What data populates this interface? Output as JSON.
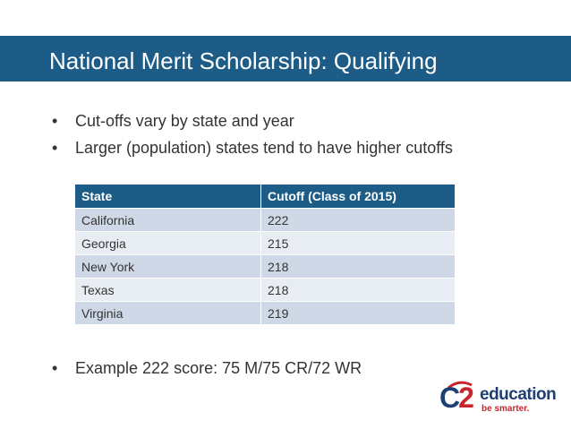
{
  "title": "National Merit Scholarship: Qualifying",
  "bullets": [
    "Cut-offs vary by state and year",
    "Larger (population) states tend to have higher cutoffs"
  ],
  "table": {
    "headers": [
      "State",
      "Cutoff (Class of 2015)"
    ],
    "rows": [
      [
        "California",
        "222"
      ],
      [
        "Georgia",
        "215"
      ],
      [
        "New York",
        "218"
      ],
      [
        "Texas",
        "218"
      ],
      [
        "Virginia",
        "219"
      ]
    ]
  },
  "bottom_bullet": "Example 222 score: 75 M/75 CR/72 WR",
  "logo": {
    "mark_c": "C",
    "mark_2": "2",
    "word": "education",
    "tagline": "be smarter."
  },
  "colors": {
    "title_bar": "#1d5c87",
    "row_odd": "#cfd8e6",
    "row_even": "#e8edf4",
    "logo_blue": "#1d3f72",
    "logo_red": "#c8262e"
  }
}
